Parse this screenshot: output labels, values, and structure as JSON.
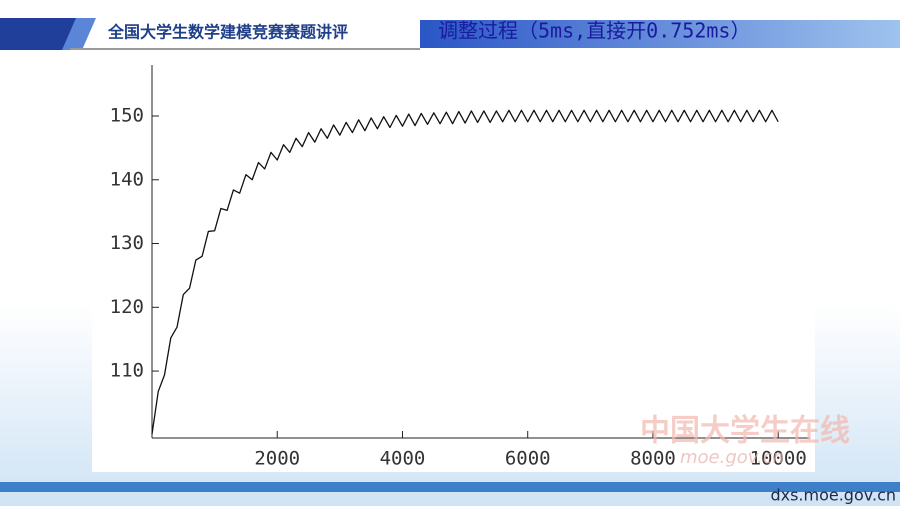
{
  "header": {
    "course": "全国大学生数学建模竞赛赛题讲评",
    "footer": "dxs.moe.gov.cn",
    "watermark": "中国大学生在线",
    "watermark_sub": "moe.gov.cn"
  },
  "chart_data": {
    "type": "line",
    "title": "调整过程（5ms,直接开0.752ms）",
    "color": "#111111",
    "xlim": [
      0,
      10500
    ],
    "ylim": [
      99.5,
      158
    ],
    "xticks": [
      2000,
      4000,
      6000,
      8000,
      10000
    ],
    "yticks": [
      110,
      120,
      130,
      140,
      150
    ],
    "x": [
      0,
      100,
      200,
      300,
      400,
      500,
      600,
      700,
      800,
      900,
      1000,
      1100,
      1200,
      1300,
      1400,
      1500,
      1600,
      1700,
      1800,
      1900,
      2000,
      2100,
      2200,
      2300,
      2400,
      2500,
      2600,
      2700,
      2800,
      2900,
      3000,
      3100,
      3200,
      3300,
      3400,
      3500,
      3600,
      3700,
      3800,
      3900,
      4000,
      4100,
      4200,
      4300,
      4400,
      4500,
      4600,
      4700,
      4800,
      4900,
      5000,
      5100,
      5200,
      5300,
      5400,
      5500,
      5600,
      5700,
      5800,
      5900,
      6000,
      6100,
      6200,
      6300,
      6400,
      6500,
      6600,
      6700,
      6800,
      6900,
      7000,
      7100,
      7200,
      7300,
      7400,
      7500,
      7600,
      7700,
      7800,
      7900,
      8000,
      8100,
      8200,
      8300,
      8400,
      8500,
      8600,
      8700,
      8800,
      8900,
      9000,
      9100,
      9200,
      9300,
      9400,
      9500,
      9600,
      9700,
      9800,
      9900,
      10000
    ],
    "values": [
      100.1,
      106.8,
      109.4,
      115.2,
      116.9,
      122.0,
      123.0,
      127.4,
      128.0,
      131.9,
      132.0,
      135.5,
      135.2,
      138.4,
      137.9,
      140.8,
      140.0,
      142.7,
      141.7,
      144.3,
      143.1,
      145.5,
      144.3,
      146.5,
      145.2,
      147.4,
      145.9,
      148.0,
      146.5,
      148.6,
      147.0,
      149.0,
      147.4,
      149.4,
      147.7,
      149.7,
      148.0,
      149.9,
      148.2,
      150.1,
      148.4,
      150.3,
      148.5,
      150.4,
      148.7,
      150.5,
      148.8,
      150.6,
      148.8,
      150.7,
      148.9,
      150.8,
      149.0,
      150.8,
      149.0,
      150.8,
      149.1,
      150.9,
      149.1,
      150.9,
      149.1,
      150.9,
      149.1,
      150.9,
      149.1,
      150.9,
      149.1,
      150.9,
      149.1,
      150.9,
      149.1,
      150.9,
      149.1,
      150.9,
      149.1,
      150.9,
      149.1,
      150.9,
      149.1,
      150.9,
      149.1,
      150.9,
      149.1,
      150.9,
      149.1,
      150.9,
      149.1,
      150.9,
      149.1,
      150.9,
      149.1,
      150.9,
      149.1,
      150.9,
      149.1,
      150.9,
      149.1,
      150.9,
      149.1,
      150.9,
      149.1
    ]
  }
}
